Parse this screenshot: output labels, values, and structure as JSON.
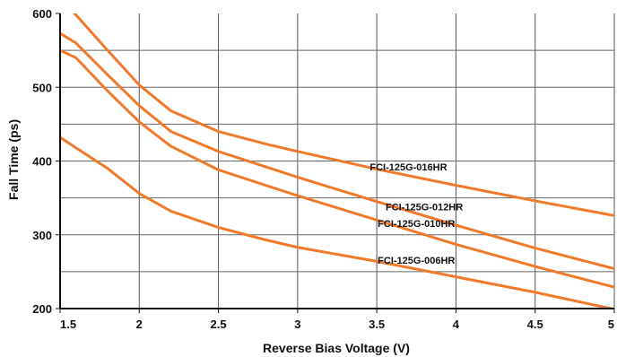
{
  "chart_data": {
    "type": "line",
    "title": "",
    "xlabel": "Reverse Bias Voltage (V)",
    "ylabel": "Fall Time (ps)",
    "xlim": [
      1.5,
      5
    ],
    "ylim": [
      200,
      600
    ],
    "grid": true,
    "x_ticks": [
      "1.5",
      "2",
      "2.5",
      "3",
      "3.5",
      "4",
      "4.5",
      "5"
    ],
    "y_ticks": [
      "200",
      "300",
      "400",
      "500",
      "600"
    ],
    "line_color": "#f07a2a",
    "series": [
      {
        "name": "FCI-125G-016HR",
        "x": [
          1.5,
          1.6,
          1.8,
          2.0,
          2.2,
          2.5,
          2.8,
          3.0,
          3.5,
          4.0,
          4.5,
          5.0
        ],
        "y": [
          620,
          598,
          550,
          503,
          468,
          440,
          423,
          413,
          389,
          367,
          346,
          326
        ]
      },
      {
        "name": "FCI-125G-012HR",
        "x": [
          1.5,
          1.6,
          1.8,
          2.0,
          2.2,
          2.5,
          2.8,
          3.0,
          3.5,
          4.0,
          4.5,
          5.0
        ],
        "y": [
          573,
          560,
          517,
          475,
          440,
          413,
          392,
          378,
          345,
          313,
          282,
          254
        ]
      },
      {
        "name": "FCI-125G-010HR",
        "x": [
          1.5,
          1.6,
          1.8,
          2.0,
          2.2,
          2.5,
          2.8,
          3.0,
          3.5,
          4.0,
          4.5,
          5.0
        ],
        "y": [
          550,
          540,
          495,
          453,
          420,
          388,
          367,
          353,
          320,
          287,
          257,
          229
        ]
      },
      {
        "name": "FCI-125G-006HR",
        "x": [
          1.5,
          1.6,
          1.8,
          2.0,
          2.2,
          2.5,
          2.8,
          3.0,
          3.5,
          4.0,
          4.5,
          5.0
        ],
        "y": [
          432,
          418,
          390,
          356,
          332,
          310,
          293,
          283,
          264,
          243,
          222,
          199
        ]
      }
    ],
    "annotations": [
      {
        "text": "FCI-125G-016HR",
        "series": 0,
        "x": 3.7
      },
      {
        "text": "FCI-125G-012HR",
        "series": 1,
        "x": 3.8
      },
      {
        "text": "FCI-125G-010HR",
        "series": 2,
        "x": 3.75
      },
      {
        "text": "FCI-125G-006HR",
        "series": 3,
        "x": 3.75
      }
    ]
  }
}
